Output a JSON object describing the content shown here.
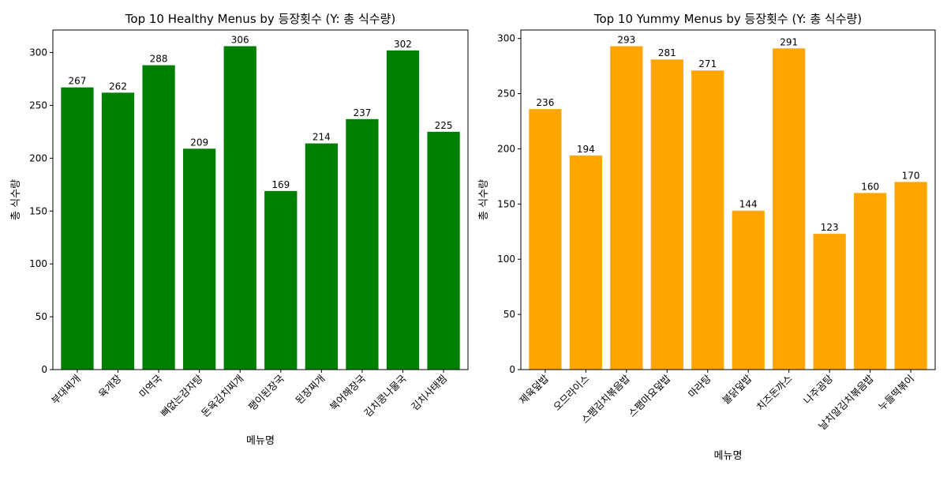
{
  "chart_data": [
    {
      "type": "bar",
      "title": "Top 10 Healthy Menus by 등장횟수 (Y: 총 식수량)",
      "xlabel": "메뉴명",
      "ylabel": "총 식수량",
      "categories": [
        "부대찌개",
        "육개장",
        "미역국",
        "뼈없는감자탕",
        "돈육김치찌개",
        "팽이된장국",
        "된장찌개",
        "북어해장국",
        "김치콩나물국",
        "김치사태찜"
      ],
      "values": [
        267,
        262,
        288,
        209,
        306,
        169,
        214,
        237,
        302,
        225
      ],
      "color": "#008000",
      "ylim": [
        0,
        321.3
      ],
      "yticks": [
        0,
        50,
        100,
        150,
        200,
        250,
        300
      ],
      "grid": false,
      "legend": "none"
    },
    {
      "type": "bar",
      "title": "Top 10 Yummy Menus by 등장횟수 (Y: 총 식수량)",
      "xlabel": "메뉴명",
      "ylabel": "총 식수량",
      "categories": [
        "제육덮밥",
        "오므라이스",
        "스팸김치볶음밥",
        "스팸마요덮밥",
        "마라탕",
        "불닭덮밥",
        "치즈돈까스",
        "나주곰탕",
        "날치알김치볶음밥",
        "누들떡볶이"
      ],
      "values": [
        236,
        194,
        293,
        281,
        271,
        144,
        291,
        123,
        160,
        170
      ],
      "color": "#FFA500",
      "ylim": [
        0,
        307.65
      ],
      "yticks": [
        0,
        50,
        100,
        150,
        200,
        250,
        300
      ],
      "grid": false,
      "legend": "none"
    }
  ]
}
